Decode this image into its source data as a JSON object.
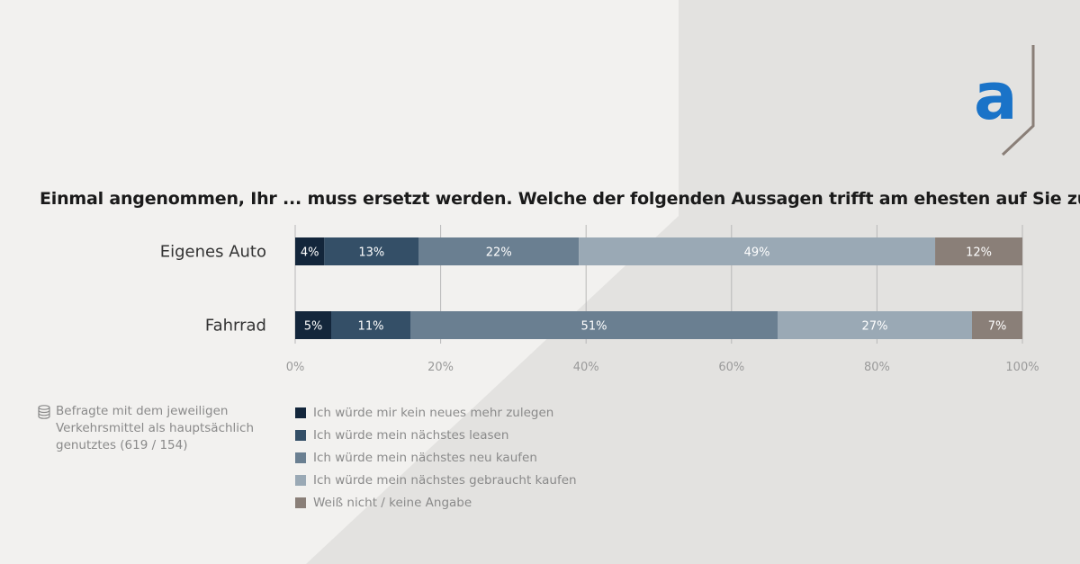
{
  "title": "Einmal angenommen, Ihr ... muss ersetzt werden. Welche der folgenden Aussagen trifft am ehesten auf Sie zu?",
  "logo": {
    "letter": "a",
    "icon": "brand-logo-icon",
    "color": "#1a73c8"
  },
  "note": {
    "icon": "database-icon",
    "text": "Befragte mit dem jeweiligen Verkehrsmittel als hauptsächlich genutztes (619 / 154)"
  },
  "legend": [
    {
      "label": "Ich würde mir kein neues mehr zulegen",
      "color": "#13263b"
    },
    {
      "label": "Ich würde mein nächstes leasen",
      "color": "#344f67"
    },
    {
      "label": "Ich würde mein nächstes neu kaufen",
      "color": "#6a7f91"
    },
    {
      "label": "Ich würde mein nächstes gebraucht kaufen",
      "color": "#9aa9b5"
    },
    {
      "label": "Weiß nicht / keine Angabe",
      "color": "#8a7f78"
    }
  ],
  "chart_data": {
    "type": "bar",
    "orientation": "horizontal-stacked-100",
    "categories": [
      "Eigenes Auto",
      "Fahrrad"
    ],
    "series": [
      {
        "name": "Ich würde mir kein neues mehr zulegen",
        "values": [
          4,
          5
        ],
        "labels": [
          "4%",
          "5%"
        ]
      },
      {
        "name": "Ich würde mein nächstes leasen",
        "values": [
          13,
          11
        ],
        "labels": [
          "13%",
          "11%"
        ]
      },
      {
        "name": "Ich würde mein nächstes neu kaufen",
        "values": [
          22,
          51
        ],
        "labels": [
          "22%",
          "51%"
        ]
      },
      {
        "name": "Ich würde mein nächstes gebraucht kaufen",
        "values": [
          49,
          27
        ],
        "labels": [
          "49%",
          "27%"
        ]
      },
      {
        "name": "Weiß nicht / keine Angabe",
        "values": [
          12,
          7
        ],
        "labels": [
          "12%",
          "7%"
        ]
      }
    ],
    "xlim": [
      0,
      100
    ],
    "xticks": [
      0,
      20,
      40,
      60,
      80,
      100
    ],
    "xtick_labels": [
      "0%",
      "20%",
      "40%",
      "60%",
      "80%",
      "100%"
    ],
    "grid": true,
    "legend_position": "bottom-left"
  }
}
